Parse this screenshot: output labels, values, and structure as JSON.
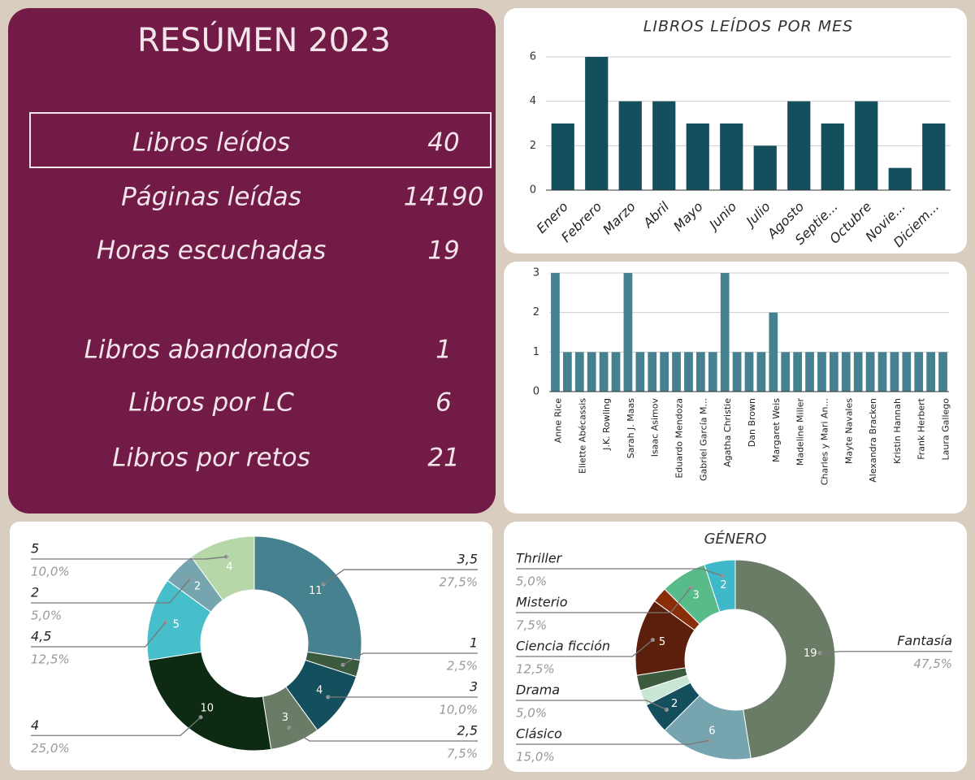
{
  "summary": {
    "title": "RESÚMEN 2023",
    "rows": [
      {
        "label": "Libros leídos",
        "value": 40
      },
      {
        "label": "Páginas leídas",
        "value": 14190
      },
      {
        "label": "Horas escuchadas",
        "value": 19
      },
      {
        "label": "Libros abandonados",
        "value": 1
      },
      {
        "label": "Libros por LC",
        "value": 6
      },
      {
        "label": "Libros por retos",
        "value": 21
      }
    ]
  },
  "chart_data": [
    {
      "type": "bar",
      "title": "LIBROS LEÍDOS POR MES",
      "categories": [
        "Enero",
        "Febrero",
        "Marzo",
        "Abril",
        "Mayo",
        "Junio",
        "Julio",
        "Agosto",
        "Septie...",
        "Octubre",
        "Novie...",
        "Diciem..."
      ],
      "values": [
        3,
        6,
        4,
        4,
        3,
        3,
        2,
        4,
        3,
        4,
        1,
        3
      ],
      "color": "#134f5c",
      "ylim": [
        0,
        6
      ],
      "yticks": [
        0,
        2,
        4,
        6
      ],
      "grid": true
    },
    {
      "type": "bar",
      "categories": [
        "Anne Rice",
        null,
        "Eliette Abécassis",
        null,
        "J.K. Rowling",
        null,
        "Sarah J. Maas",
        null,
        "Isaac Asimov",
        null,
        "Eduardo Mendoza",
        null,
        "Gabriel García M...",
        null,
        "Agatha Christie",
        null,
        "Dan Brown",
        null,
        "Margaret Weis",
        null,
        "Madeline Miller",
        null,
        "Charles y Mari An...",
        null,
        "Mayte Navales",
        null,
        "Alexandra Bracken",
        null,
        "Kristin Hannah",
        null,
        "Frank Herbert",
        null,
        "Laura Gallego"
      ],
      "values": [
        3,
        1,
        1,
        1,
        1,
        1,
        3,
        1,
        1,
        1,
        1,
        1,
        1,
        1,
        3,
        1,
        1,
        1,
        2,
        1,
        1,
        1,
        1,
        1,
        1,
        1,
        1,
        1,
        1,
        1,
        1,
        1,
        1
      ],
      "color": "#45818e",
      "ylim": [
        0,
        3
      ],
      "yticks": [
        0,
        1,
        2,
        3
      ],
      "grid": true
    },
    {
      "type": "donut",
      "categories": [
        "3,5",
        "1",
        "3",
        "2,5",
        "4",
        "4,5",
        "2",
        "5"
      ],
      "values": [
        11,
        1,
        4,
        3,
        10,
        5,
        2,
        4
      ],
      "percentages": [
        27.5,
        2.5,
        10,
        7.5,
        25,
        12.5,
        5,
        10
      ],
      "percentage_labels": [
        "27,5%",
        "2,5%",
        "10,0%",
        "7,5%",
        "25,0%",
        "12,5%",
        "5,0%",
        "10,0%"
      ],
      "colors": [
        "#45818e",
        "#3b5a3e",
        "#134f5c",
        "#6a7c66",
        "#0d2a12",
        "#47bfcb",
        "#76a5af",
        "#b6d7a8"
      ]
    },
    {
      "type": "donut",
      "title": "GÉNERO",
      "categories": [
        "Fantasía",
        "Clásico",
        "Drama",
        null,
        null,
        "Ciencia ficción",
        null,
        "Misterio",
        "Thriller"
      ],
      "values": [
        19,
        6,
        2,
        1,
        1,
        5,
        1,
        3,
        2
      ],
      "percentages": [
        47.5,
        15,
        5,
        null,
        null,
        12.5,
        null,
        7.5,
        5
      ],
      "percentage_labels": [
        "47,5%",
        "15,0%",
        "5,0%",
        null,
        null,
        "12,5%",
        null,
        "7,5%",
        "5,0%"
      ],
      "colors": [
        "#6a7c66",
        "#76a5af",
        "#134f5c",
        "#c8e6d4",
        "#3b5a3e",
        "#5b1f0b",
        "#8a2e0a",
        "#57bb8a",
        "#3fb8c9"
      ]
    }
  ]
}
